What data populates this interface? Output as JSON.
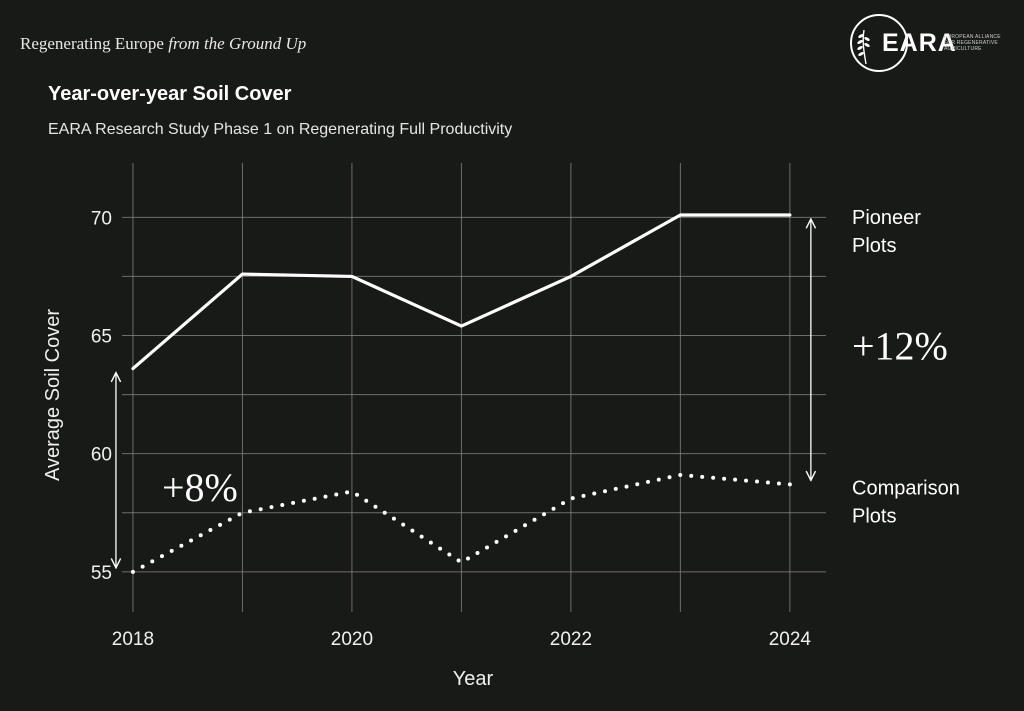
{
  "header": {
    "tagline_roman": "Regenerating Europe",
    "tagline_italic": "from the Ground Up",
    "logo_word": "EARA",
    "logo_sub": "EUROPEAN ALLIANCE FOR REGENERATIVE AGRICULTURE"
  },
  "chart_data": {
    "type": "line",
    "title": "Year-over-year Soil Cover",
    "subtitle": "EARA Research Study Phase 1 on Regenerating Full Productivity",
    "xlabel": "Year",
    "ylabel": "Average Soil Cover",
    "x": [
      2018,
      2019,
      2020,
      2021,
      2022,
      2023,
      2024
    ],
    "xticks": [
      "2018",
      "2020",
      "2022",
      "2024"
    ],
    "yticks": [
      "55",
      "60",
      "65",
      "70"
    ],
    "ylim": [
      53.3,
      72.3
    ],
    "xlim": [
      2017.9,
      2024.33
    ],
    "grid": true,
    "series": [
      {
        "name": "Pioneer Plots",
        "values": [
          63.6,
          67.6,
          67.5,
          65.4,
          67.5,
          70.1,
          70.1
        ],
        "style": "solid"
      },
      {
        "name": "Comparison Plots",
        "values": [
          55.0,
          57.5,
          58.4,
          55.4,
          58.1,
          59.1,
          58.7
        ],
        "style": "dotted"
      }
    ],
    "annotations": [
      {
        "text": "+8%",
        "x": 2018,
        "y_from": 55.0,
        "y_to": 63.6
      },
      {
        "text": "+12%",
        "x": 2024,
        "y_from": 58.7,
        "y_to": 70.1
      }
    ],
    "colors": {
      "background": "#181a17",
      "line": "#ffffff",
      "grid": "#8a8a86"
    }
  }
}
